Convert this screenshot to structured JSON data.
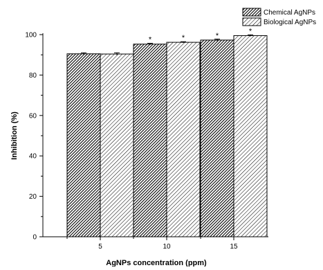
{
  "chart_data": {
    "type": "bar",
    "categories": [
      "5",
      "10",
      "15"
    ],
    "series": [
      {
        "name": "Chemical AgNPs",
        "values": [
          90.5,
          95.3,
          97.3
        ],
        "errors": [
          0.5,
          0.4,
          0.5
        ],
        "significance": [
          "",
          "*",
          "*"
        ],
        "pattern": "dense-hatch"
      },
      {
        "name": "Biological AgNPs",
        "values": [
          90.4,
          96.2,
          99.5
        ],
        "errors": [
          0.6,
          0.3,
          0.4
        ],
        "significance": [
          "",
          "*",
          "*"
        ],
        "pattern": "sparse-hatch"
      }
    ],
    "xlabel": "AgNPs concentration (ppm)",
    "ylabel": "Inhibition (%)",
    "ylim": [
      0,
      100
    ],
    "yticks": [
      0,
      20,
      40,
      60,
      80,
      100
    ],
    "grid": false,
    "legend_position": "top-right",
    "colors": {
      "bar_fill": "#ffffff",
      "hatch": "#000000",
      "axis": "#000000"
    }
  }
}
